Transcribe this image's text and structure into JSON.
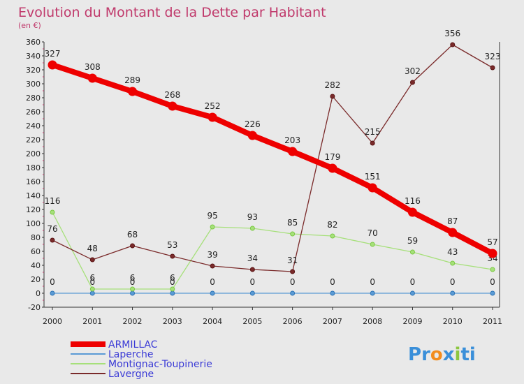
{
  "chart_data": {
    "type": "line",
    "title": "Evolution du Montant de la Dette par Habitant",
    "subtitle": "(en €)",
    "xlabel": "",
    "ylabel": "",
    "x": [
      "2000",
      "2001",
      "2002",
      "2003",
      "2004",
      "2005",
      "2006",
      "2007",
      "2008",
      "2009",
      "2010",
      "2011"
    ],
    "ylim": [
      -20,
      360
    ],
    "yticks": [
      -20,
      0,
      20,
      40,
      60,
      80,
      100,
      120,
      140,
      160,
      180,
      200,
      220,
      240,
      260,
      280,
      300,
      320,
      340,
      360
    ],
    "grid": false,
    "legend_position": "bottom-left",
    "series": [
      {
        "name": "ARMILLAC",
        "color": "#ee0000",
        "thick": true,
        "values": [
          327,
          308,
          289,
          268,
          252,
          226,
          203,
          179,
          151,
          116,
          87,
          57
        ],
        "labels": [
          "327",
          "308",
          "289",
          "268",
          "252",
          "226",
          "203",
          "179",
          "151",
          "116",
          "87",
          "57"
        ]
      },
      {
        "name": "Laperche",
        "color": "#5b9bd5",
        "point": "#2e75b6",
        "values": [
          0,
          0,
          0,
          0,
          0,
          0,
          0,
          0,
          0,
          0,
          0,
          0
        ],
        "labels": [
          "0",
          "0",
          "0",
          "0",
          "0",
          "0",
          "0",
          "0",
          "0",
          "0",
          "0",
          "0"
        ]
      },
      {
        "name": "Montignac-Toupinerie",
        "color": "#a6e07a",
        "point": "#7ac943",
        "values": [
          116,
          6,
          6,
          6,
          95,
          93,
          85,
          82,
          70,
          59,
          43,
          34
        ],
        "labels": [
          "116",
          "6",
          "6",
          "6",
          "95",
          "93",
          "85",
          "82",
          "70",
          "59",
          "43",
          "34"
        ]
      },
      {
        "name": "Lavergne",
        "color": "#7a2a2a",
        "point": "#5a1414",
        "values": [
          76,
          48,
          68,
          53,
          39,
          34,
          31,
          282,
          215,
          302,
          356,
          323
        ],
        "labels": [
          "76",
          "48",
          "68",
          "53",
          "39",
          "34",
          "31",
          "282",
          "215",
          "302",
          "356",
          "323"
        ]
      }
    ]
  },
  "logo": {
    "text": "Proxiti",
    "letters": [
      "P",
      "r",
      "o",
      "x",
      "i",
      "t",
      "i"
    ],
    "colors": [
      "#3a8fd9",
      "#3a8fd9",
      "#f28c1e",
      "#3a8fd9",
      "#8cc63f",
      "#3a8fd9",
      "#3a8fd9"
    ]
  }
}
